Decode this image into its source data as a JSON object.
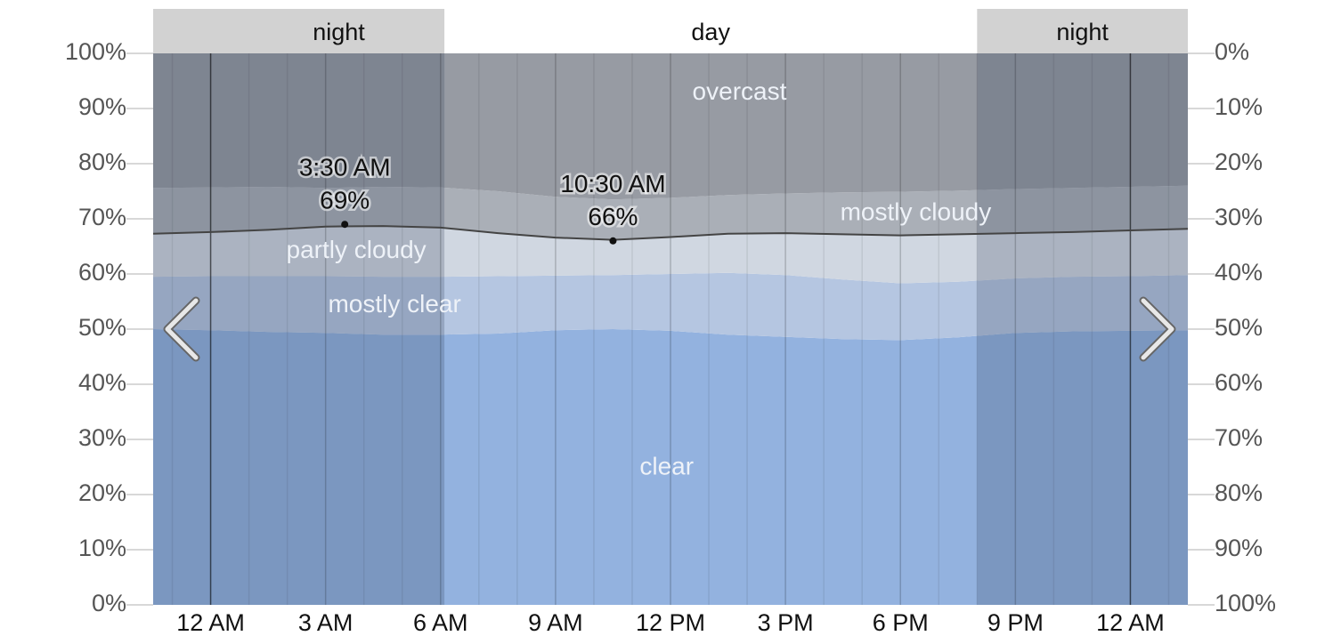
{
  "chart_data": {
    "type": "stacked_area",
    "x": [
      -1.5,
      0,
      1.5,
      3,
      4.5,
      6,
      7.5,
      9,
      10.5,
      12,
      13.5,
      15,
      16.5,
      18,
      19.5,
      21,
      22.5,
      24,
      25.5
    ],
    "series": [
      {
        "name": "clear",
        "color": "#93b2df",
        "values": [
          50,
          49.8,
          49.5,
          49.3,
          49,
          49,
          49.2,
          49.8,
          50,
          49.7,
          49,
          48.6,
          48.2,
          48,
          48.5,
          49.3,
          49.6,
          49.7,
          49.8
        ]
      },
      {
        "name": "mostly clear",
        "color": "#b5c6e1",
        "values": [
          9.5,
          9.8,
          10.1,
          10.3,
          10.5,
          10.5,
          10.4,
          9.9,
          9.8,
          10.3,
          11.2,
          11.2,
          10.8,
          10.3,
          10.1,
          9.9,
          9.9,
          9.9,
          10
        ]
      },
      {
        "name": "partly cloudy",
        "color": "#d0d7e1",
        "values": [
          7.8,
          8,
          8.4,
          9,
          9.2,
          8.9,
          7.8,
          6.9,
          6.4,
          6.7,
          7.1,
          7.6,
          8.2,
          8.7,
          8.6,
          8.2,
          8.1,
          8.3,
          8.4
        ]
      },
      {
        "name": "mostly cloudy",
        "color": "#aaafb7",
        "values": [
          8.3,
          8.1,
          7.8,
          7,
          7.1,
          7.3,
          7.6,
          7.4,
          7.3,
          7.1,
          7,
          7.2,
          7.6,
          7.9,
          7.9,
          8,
          8,
          7.9,
          7.8
        ]
      },
      {
        "name": "overcast",
        "color": "#979ba3",
        "values": [
          24.4,
          24.3,
          24.2,
          24.4,
          24.2,
          24.3,
          25,
          26,
          26.5,
          26.2,
          25.7,
          25.4,
          25.2,
          25.1,
          24.9,
          24.6,
          24.4,
          24.2,
          24
        ]
      }
    ],
    "xlim": [
      -1.5,
      25.5
    ],
    "xticks": [
      {
        "value": 0,
        "label": "12 AM"
      },
      {
        "value": 3,
        "label": "3 AM"
      },
      {
        "value": 6,
        "label": "6 AM"
      },
      {
        "value": 9,
        "label": "9 AM"
      },
      {
        "value": 12,
        "label": "12 PM"
      },
      {
        "value": 15,
        "label": "3 PM"
      },
      {
        "value": 18,
        "label": "6 PM"
      },
      {
        "value": 21,
        "label": "9 PM"
      },
      {
        "value": 24,
        "label": "12 AM"
      }
    ],
    "ylim": [
      0,
      100
    ],
    "yticks": [
      {
        "value": 0,
        "label": "0%"
      },
      {
        "value": 10,
        "label": "10%"
      },
      {
        "value": 20,
        "label": "20%"
      },
      {
        "value": 30,
        "label": "30%"
      },
      {
        "value": 40,
        "label": "40%"
      },
      {
        "value": 50,
        "label": "50%"
      },
      {
        "value": 60,
        "label": "60%"
      },
      {
        "value": 70,
        "label": "70%"
      },
      {
        "value": 80,
        "label": "80%"
      },
      {
        "value": 90,
        "label": "90%"
      },
      {
        "value": 100,
        "label": "100%"
      }
    ],
    "y2lim": [
      100,
      0
    ],
    "y2ticks": [
      {
        "value": 0,
        "label": "0%"
      },
      {
        "value": 10,
        "label": "10%"
      },
      {
        "value": 20,
        "label": "20%"
      },
      {
        "value": 30,
        "label": "30%"
      },
      {
        "value": 40,
        "label": "40%"
      },
      {
        "value": 50,
        "label": "50%"
      },
      {
        "value": 60,
        "label": "60%"
      },
      {
        "value": 70,
        "label": "70%"
      },
      {
        "value": 80,
        "label": "80%"
      },
      {
        "value": 90,
        "label": "90%"
      },
      {
        "value": 100,
        "label": "100%"
      }
    ],
    "bands": [
      {
        "label": "night",
        "from": -1.5,
        "to": 6.1
      },
      {
        "label": "day",
        "from": 6.1,
        "to": 20
      },
      {
        "label": "night",
        "from": 20,
        "to": 25.5
      }
    ],
    "annotations": [
      {
        "x": 3.5,
        "x_label": "3:30 AM",
        "value": 69,
        "value_label": "69%"
      },
      {
        "x": 10.5,
        "x_label": "10:30 AM",
        "value": 66,
        "value_label": "66%"
      }
    ]
  }
}
